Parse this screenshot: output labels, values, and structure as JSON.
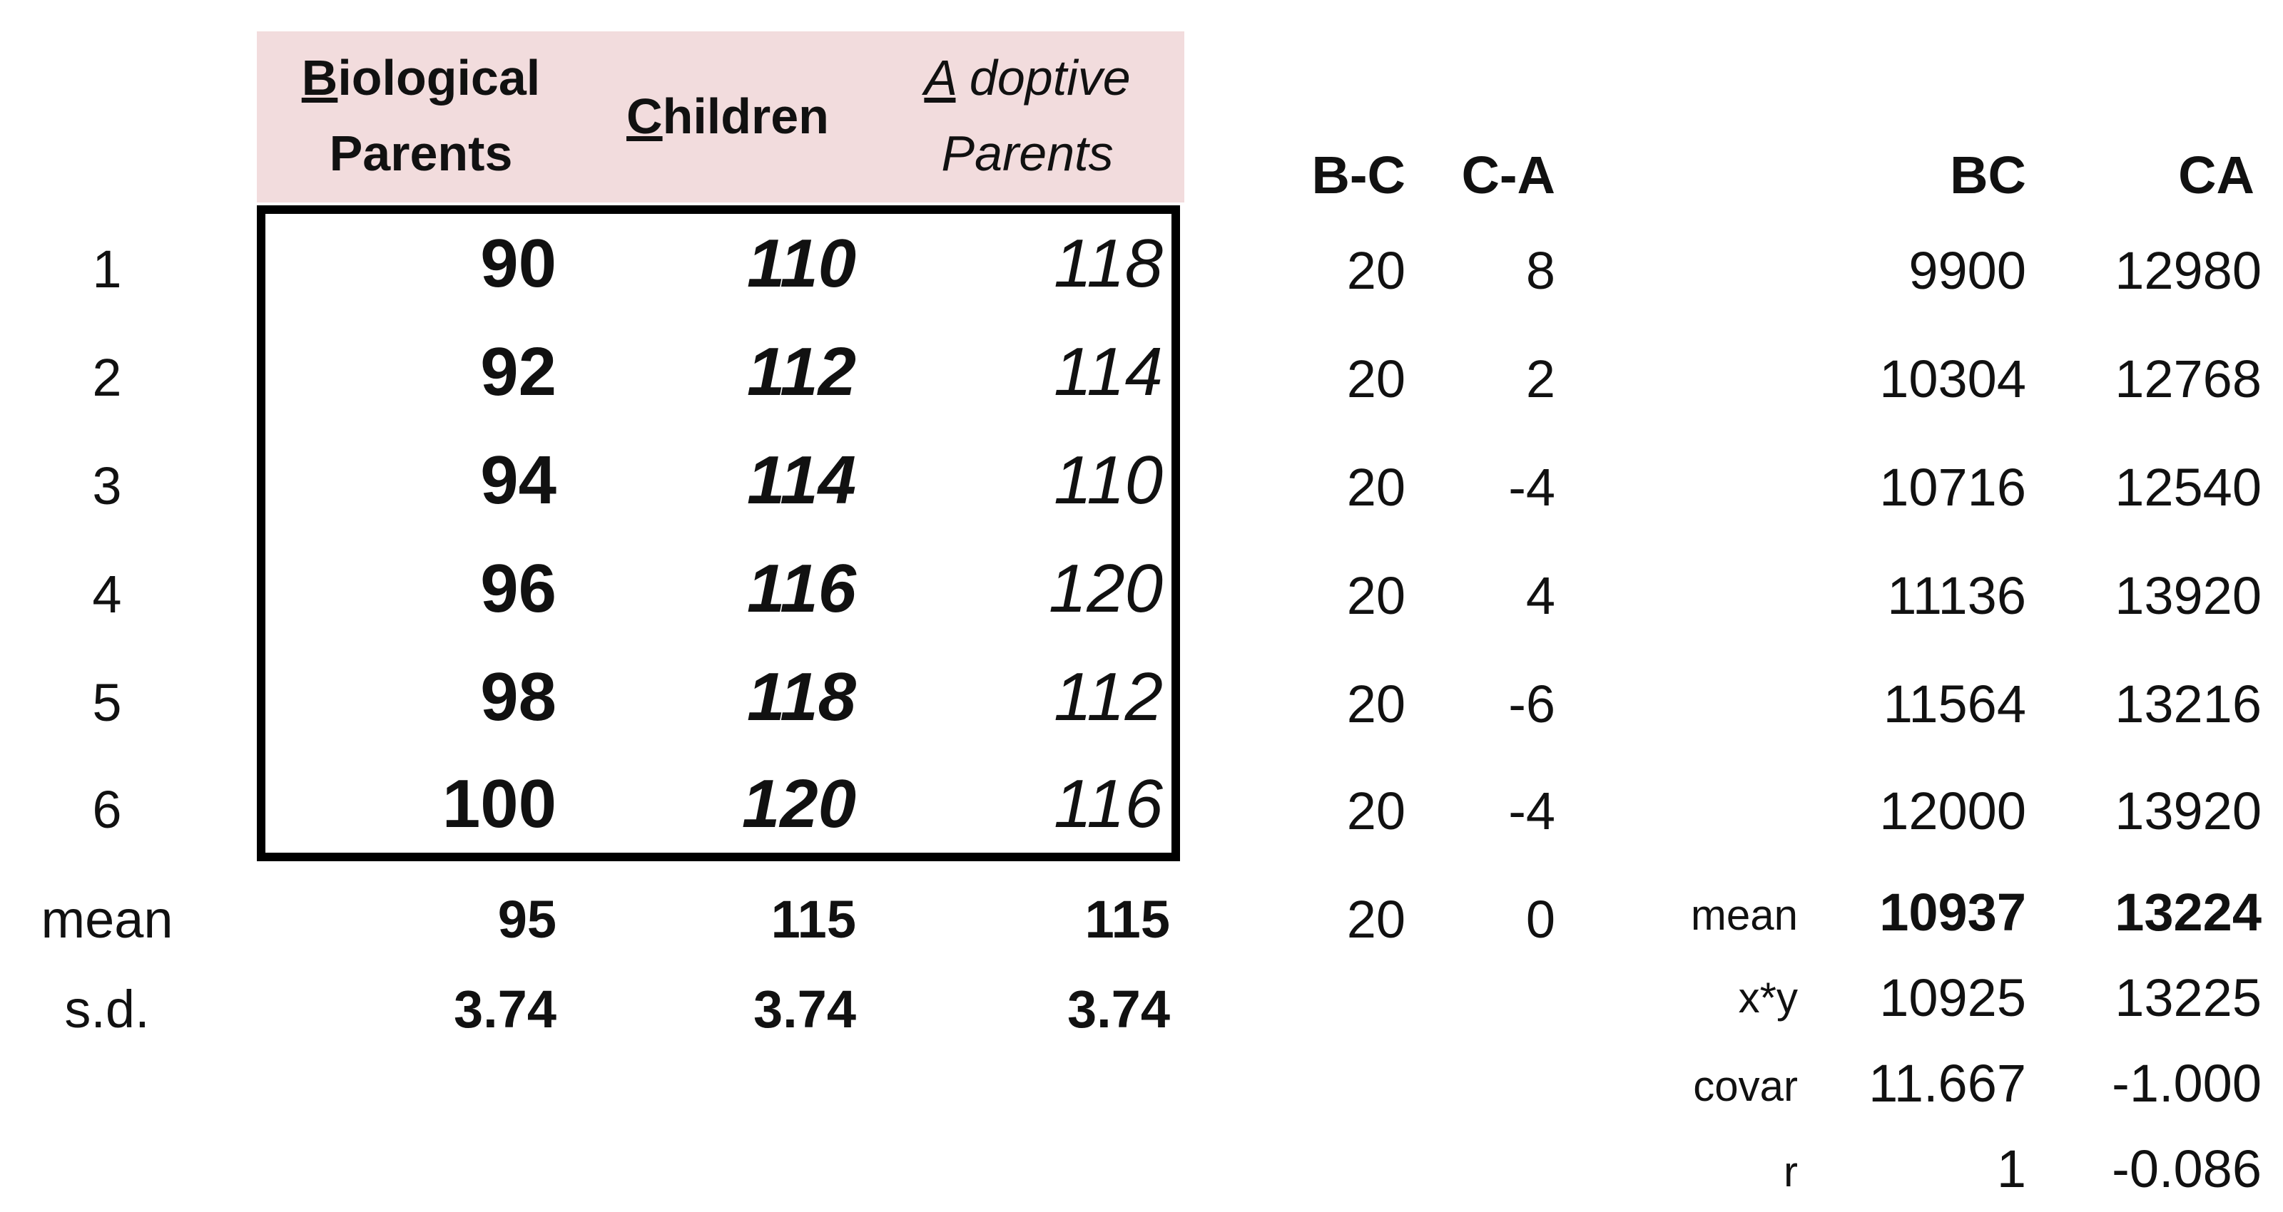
{
  "left_table": {
    "headers": {
      "biological_initial": "B",
      "biological_rest": "iological",
      "biological_line2": "Parents",
      "children_initial": "C",
      "children_rest": "hildren",
      "adoptive_initial": "A",
      "adoptive_rest": " doptive",
      "adoptive_line2": "Parents"
    },
    "row_labels": [
      "1",
      "2",
      "3",
      "4",
      "5",
      "6"
    ],
    "biological": [
      "90",
      "92",
      "94",
      "96",
      "98",
      "100"
    ],
    "children": [
      "110",
      "112",
      "114",
      "116",
      "118",
      "120"
    ],
    "adoptive": [
      "118",
      "114",
      "110",
      "120",
      "112",
      "116"
    ],
    "mean_label": "mean",
    "sd_label": "s.d.",
    "mean": [
      "95",
      "115",
      "115"
    ],
    "sd": [
      "3.74",
      "3.74",
      "3.74"
    ]
  },
  "diff_table": {
    "headers": [
      "B-C",
      "C-A"
    ],
    "bc": [
      "20",
      "20",
      "20",
      "20",
      "20",
      "20"
    ],
    "ca": [
      "8",
      "2",
      "-4",
      "4",
      "-6",
      "-4"
    ],
    "mean": [
      "20",
      "0"
    ]
  },
  "product_table": {
    "headers": [
      "BC",
      "CA"
    ],
    "bc": [
      "9900",
      "10304",
      "10716",
      "11136",
      "11564",
      "12000"
    ],
    "ca": [
      "12980",
      "12768",
      "12540",
      "13920",
      "13216",
      "13920"
    ],
    "stats_labels": [
      "mean",
      "x*y",
      "covar",
      "r"
    ],
    "stats_bc": [
      "10937",
      "10925",
      "11.667",
      "1"
    ],
    "stats_ca": [
      "13224",
      "13225",
      "-1.000",
      "-0.086"
    ]
  }
}
